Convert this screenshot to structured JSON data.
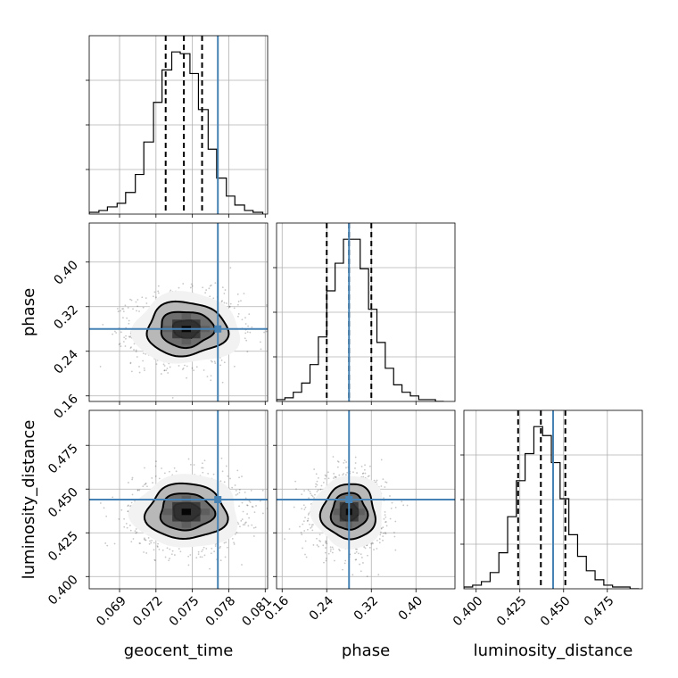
{
  "colors": {
    "truth": "#4682b4",
    "grid": "#b0b0b0",
    "hist": "#000000",
    "background": "#ffffff"
  },
  "chart_data": {
    "type": "corner",
    "parameters": [
      {
        "name": "geocent_time",
        "label": "geocent_time",
        "range": [
          0.0665,
          0.0812
        ],
        "ticks": [
          0.069,
          0.072,
          0.075,
          0.078,
          0.081
        ],
        "tick_labels": [
          "0.069",
          "0.072",
          "0.075",
          "0.078",
          "0.081"
        ],
        "truth": 0.0771,
        "quantiles": [
          0.0728,
          0.0743,
          0.0758
        ],
        "hist_edges": [
          0.0665,
          0.0673,
          0.068,
          0.0688,
          0.0695,
          0.0703,
          0.071,
          0.0718,
          0.0725,
          0.0733,
          0.074,
          0.0748,
          0.0755,
          0.0763,
          0.077,
          0.0778,
          0.0785,
          0.0793,
          0.08,
          0.0808
        ],
        "hist_counts": [
          1,
          2,
          4,
          6,
          12,
          22,
          40,
          62,
          80,
          90,
          89,
          78,
          58,
          36,
          20,
          10,
          5,
          2,
          1
        ]
      },
      {
        "name": "phase",
        "label": "phase",
        "range": [
          0.15,
          0.47
        ],
        "ticks": [
          0.16,
          0.24,
          0.32,
          0.4
        ],
        "tick_labels": [
          "0.16",
          "0.24",
          "0.32",
          "0.40"
        ],
        "truth": 0.28,
        "quantiles": [
          0.24,
          0.28,
          0.32
        ],
        "hist_edges": [
          0.15,
          0.165,
          0.18,
          0.195,
          0.21,
          0.225,
          0.24,
          0.255,
          0.27,
          0.285,
          0.3,
          0.315,
          0.33,
          0.345,
          0.36,
          0.375,
          0.39,
          0.405,
          0.42,
          0.435,
          0.45
        ],
        "hist_counts": [
          1,
          2,
          5,
          10,
          20,
          35,
          60,
          75,
          88,
          88,
          72,
          50,
          32,
          18,
          9,
          5,
          3,
          1,
          1,
          0
        ]
      },
      {
        "name": "luminosity_distance",
        "label": "luminosity_distance",
        "range": [
          0.393,
          0.495
        ],
        "ticks": [
          0.4,
          0.425,
          0.45,
          0.475
        ],
        "tick_labels": [
          "0.400",
          "0.425",
          "0.450",
          "0.475"
        ],
        "truth": 0.444,
        "quantiles": [
          0.424,
          0.437,
          0.451
        ],
        "hist_edges": [
          0.393,
          0.398,
          0.403,
          0.408,
          0.413,
          0.418,
          0.423,
          0.428,
          0.433,
          0.438,
          0.443,
          0.448,
          0.453,
          0.458,
          0.463,
          0.468,
          0.473,
          0.478,
          0.483,
          0.488,
          0.493
        ],
        "hist_counts": [
          1,
          2,
          4,
          9,
          20,
          40,
          60,
          75,
          90,
          85,
          70,
          50,
          30,
          18,
          10,
          5,
          2,
          1,
          1,
          0
        ]
      }
    ],
    "pairs": [
      {
        "x": "geocent_time",
        "y": "phase",
        "mean": [
          0.0745,
          0.28
        ],
        "sd": [
          0.0022,
          0.032
        ],
        "corr": 0.0,
        "truth": [
          0.0771,
          0.28
        ]
      },
      {
        "x": "geocent_time",
        "y": "luminosity_distance",
        "mean": [
          0.0745,
          0.437
        ],
        "sd": [
          0.0022,
          0.0105
        ],
        "corr": 0.0,
        "truth": [
          0.0771,
          0.444
        ]
      },
      {
        "x": "phase",
        "y": "luminosity_distance",
        "mean": [
          0.28,
          0.437
        ],
        "sd": [
          0.032,
          0.0105
        ],
        "corr": 0.0,
        "truth": [
          0.28,
          0.444
        ]
      }
    ],
    "contour_levels_sigma": [
      0.5,
      1.0,
      1.5,
      2.0
    ],
    "grid": true
  }
}
